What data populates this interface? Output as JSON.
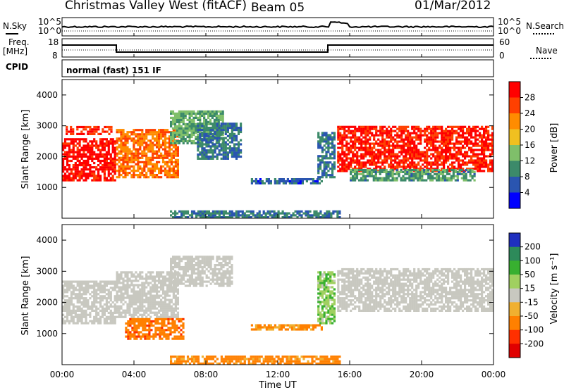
{
  "header": {
    "station": "Christmas Valley West (fitACF)",
    "beam": "Beam 05",
    "date": "01/Mar/2012"
  },
  "strip_labels": {
    "nsky": "N.Sky",
    "nsky_ticks": [
      "10^5",
      "10^0"
    ],
    "nsearch": "N.Search",
    "nsearch_ticks": [
      "10^5",
      "10^0"
    ],
    "freq_title": "Freq.",
    "freq_unit": "[MHz]",
    "freq_ticks": [
      "18",
      "8"
    ],
    "nave": "Nave",
    "nave_ticks": [
      "60",
      "0"
    ],
    "cpid": "CPID",
    "cpid_value": "normal (fast) 151 IF"
  },
  "colors": {
    "power_scale": [
      "#0000ff",
      "#2a55b0",
      "#3c8a6a",
      "#7fbf6a",
      "#f0c020",
      "#ff8c00",
      "#ff4000",
      "#ff0000"
    ],
    "velocity_scale": [
      "#1f2fbf",
      "#2d8a5a",
      "#38b030",
      "#a0d060",
      "#c8c8c0",
      "#f0b030",
      "#ff8000",
      "#ff3000",
      "#e00000"
    ],
    "frame": "#000000"
  },
  "chart_data": [
    {
      "type": "heatmap",
      "name": "Power",
      "xlabel": "Time UT",
      "ylabel": "Slant Range [km]",
      "xlim_hours": [
        0,
        24
      ],
      "ylim_km": [
        0,
        4500
      ],
      "x_ticks": [
        "00:00",
        "04:00",
        "08:00",
        "12:00",
        "16:00",
        "20:00",
        "00:00"
      ],
      "y_ticks": [
        1000,
        2000,
        3000,
        4000
      ],
      "colorbar_label": "Power [dB]",
      "colorbar_ticks": [
        "28",
        "24",
        "20",
        "16",
        "12",
        "8",
        "4"
      ],
      "regions": [
        {
          "t0": 0.0,
          "t1": 3.0,
          "r0": 1200,
          "r1": 2600,
          "level": 28
        },
        {
          "t0": 0.2,
          "t1": 2.8,
          "r0": 2700,
          "r1": 3000,
          "level": 26
        },
        {
          "t0": 3.0,
          "t1": 6.5,
          "r0": 1300,
          "r1": 2900,
          "level": 22
        },
        {
          "t0": 6.0,
          "t1": 9.0,
          "r0": 2400,
          "r1": 3500,
          "level": 12
        },
        {
          "t0": 7.5,
          "t1": 10.0,
          "r0": 1900,
          "r1": 3100,
          "level": 8
        },
        {
          "t0": 10.5,
          "t1": 14.5,
          "r0": 1100,
          "r1": 1300,
          "level": 6
        },
        {
          "t0": 14.2,
          "t1": 15.2,
          "r0": 1300,
          "r1": 2800,
          "level": 8
        },
        {
          "t0": 15.3,
          "t1": 24.0,
          "r0": 1500,
          "r1": 3000,
          "level": 27
        },
        {
          "t0": 16.0,
          "t1": 23.0,
          "r0": 1200,
          "r1": 1600,
          "level": 10
        },
        {
          "t0": 6.0,
          "t1": 15.5,
          "r0": 0,
          "r1": 250,
          "level": 8
        }
      ]
    },
    {
      "type": "heatmap",
      "name": "Velocity",
      "xlabel": "Time UT",
      "ylabel": "Slant Range [km]",
      "xlim_hours": [
        0,
        24
      ],
      "ylim_km": [
        0,
        4500
      ],
      "x_ticks": [
        "00:00",
        "04:00",
        "08:00",
        "12:00",
        "16:00",
        "20:00",
        "00:00"
      ],
      "y_ticks": [
        1000,
        2000,
        3000,
        4000
      ],
      "colorbar_label": "Velocity [m s⁻¹]",
      "colorbar_ticks": [
        "200",
        "100",
        "50",
        "15",
        "-15",
        "-50",
        "-100",
        "-200"
      ],
      "regions": [
        {
          "t0": 0.0,
          "t1": 3.0,
          "r0": 1300,
          "r1": 2700,
          "value": 0
        },
        {
          "t0": 3.0,
          "t1": 6.5,
          "r0": 1500,
          "r1": 3000,
          "value": 0
        },
        {
          "t0": 6.0,
          "t1": 9.5,
          "r0": 2500,
          "r1": 3500,
          "value": 0
        },
        {
          "t0": 3.5,
          "t1": 6.8,
          "r0": 800,
          "r1": 1500,
          "value": -80
        },
        {
          "t0": 10.5,
          "t1": 14.5,
          "r0": 1100,
          "r1": 1300,
          "value": -60
        },
        {
          "t0": 14.2,
          "t1": 15.2,
          "r0": 1300,
          "r1": 3000,
          "value": 40
        },
        {
          "t0": 15.3,
          "t1": 24.0,
          "r0": 1700,
          "r1": 3100,
          "value": 0
        },
        {
          "t0": 6.0,
          "t1": 15.5,
          "r0": 0,
          "r1": 300,
          "value": -70
        }
      ]
    }
  ]
}
